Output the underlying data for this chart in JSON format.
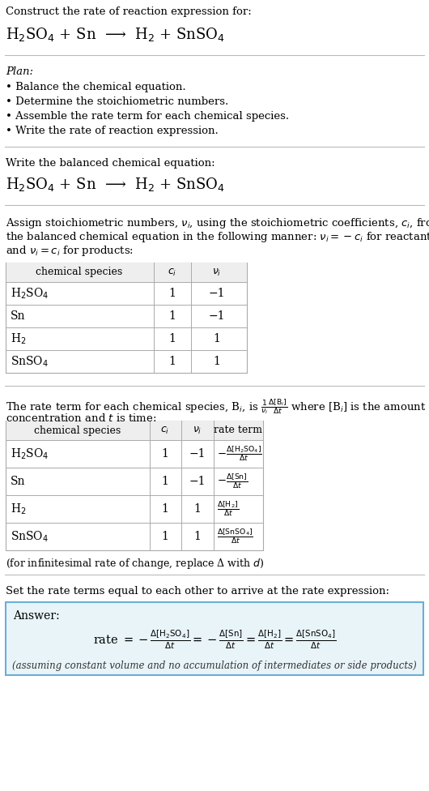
{
  "bg_color": "#ffffff",
  "text_color": "#000000",
  "title_line1": "Construct the rate of reaction expression for:",
  "reaction_equation": "H$_2$SO$_4$ + Sn  ⟶  H$_2$ + SnSO$_4$",
  "plan_header": "Plan:",
  "plan_items": [
    "• Balance the chemical equation.",
    "• Determine the stoichiometric numbers.",
    "• Assemble the rate term for each chemical species.",
    "• Write the rate of reaction expression."
  ],
  "section2_header": "Write the balanced chemical equation:",
  "section2_eq": "H$_2$SO$_4$ + Sn  ⟶  H$_2$ + SnSO$_4$",
  "table1_headers": [
    "chemical species",
    "$c_i$",
    "$\\nu_i$"
  ],
  "table1_rows": [
    [
      "H$_2$SO$_4$",
      "1",
      "−1"
    ],
    [
      "Sn",
      "1",
      "−1"
    ],
    [
      "H$_2$",
      "1",
      "1"
    ],
    [
      "SnSO$_4$",
      "1",
      "1"
    ]
  ],
  "table2_headers": [
    "chemical species",
    "$c_i$",
    "$\\nu_i$",
    "rate term"
  ],
  "table2_rows": [
    [
      "H$_2$SO$_4$",
      "1",
      "−1",
      "$-\\frac{\\Delta[\\mathrm{H_2SO_4}]}{\\Delta t}$"
    ],
    [
      "Sn",
      "1",
      "−1",
      "$-\\frac{\\Delta[\\mathrm{Sn}]}{\\Delta t}$"
    ],
    [
      "H$_2$",
      "1",
      "1",
      "$\\frac{\\Delta[\\mathrm{H_2}]}{\\Delta t}$"
    ],
    [
      "SnSO$_4$",
      "1",
      "1",
      "$\\frac{\\Delta[\\mathrm{SnSO_4}]}{\\Delta t}$"
    ]
  ],
  "infinitesimal_note": "(for infinitesimal rate of change, replace Δ with $d$)",
  "section5_header": "Set the rate terms equal to each other to arrive at the rate expression:",
  "answer_label": "Answer:",
  "answer_box_color": "#e8f4f8",
  "answer_box_border": "#6baed6",
  "answer_note": "(assuming constant volume and no accumulation of intermediates or side products)"
}
